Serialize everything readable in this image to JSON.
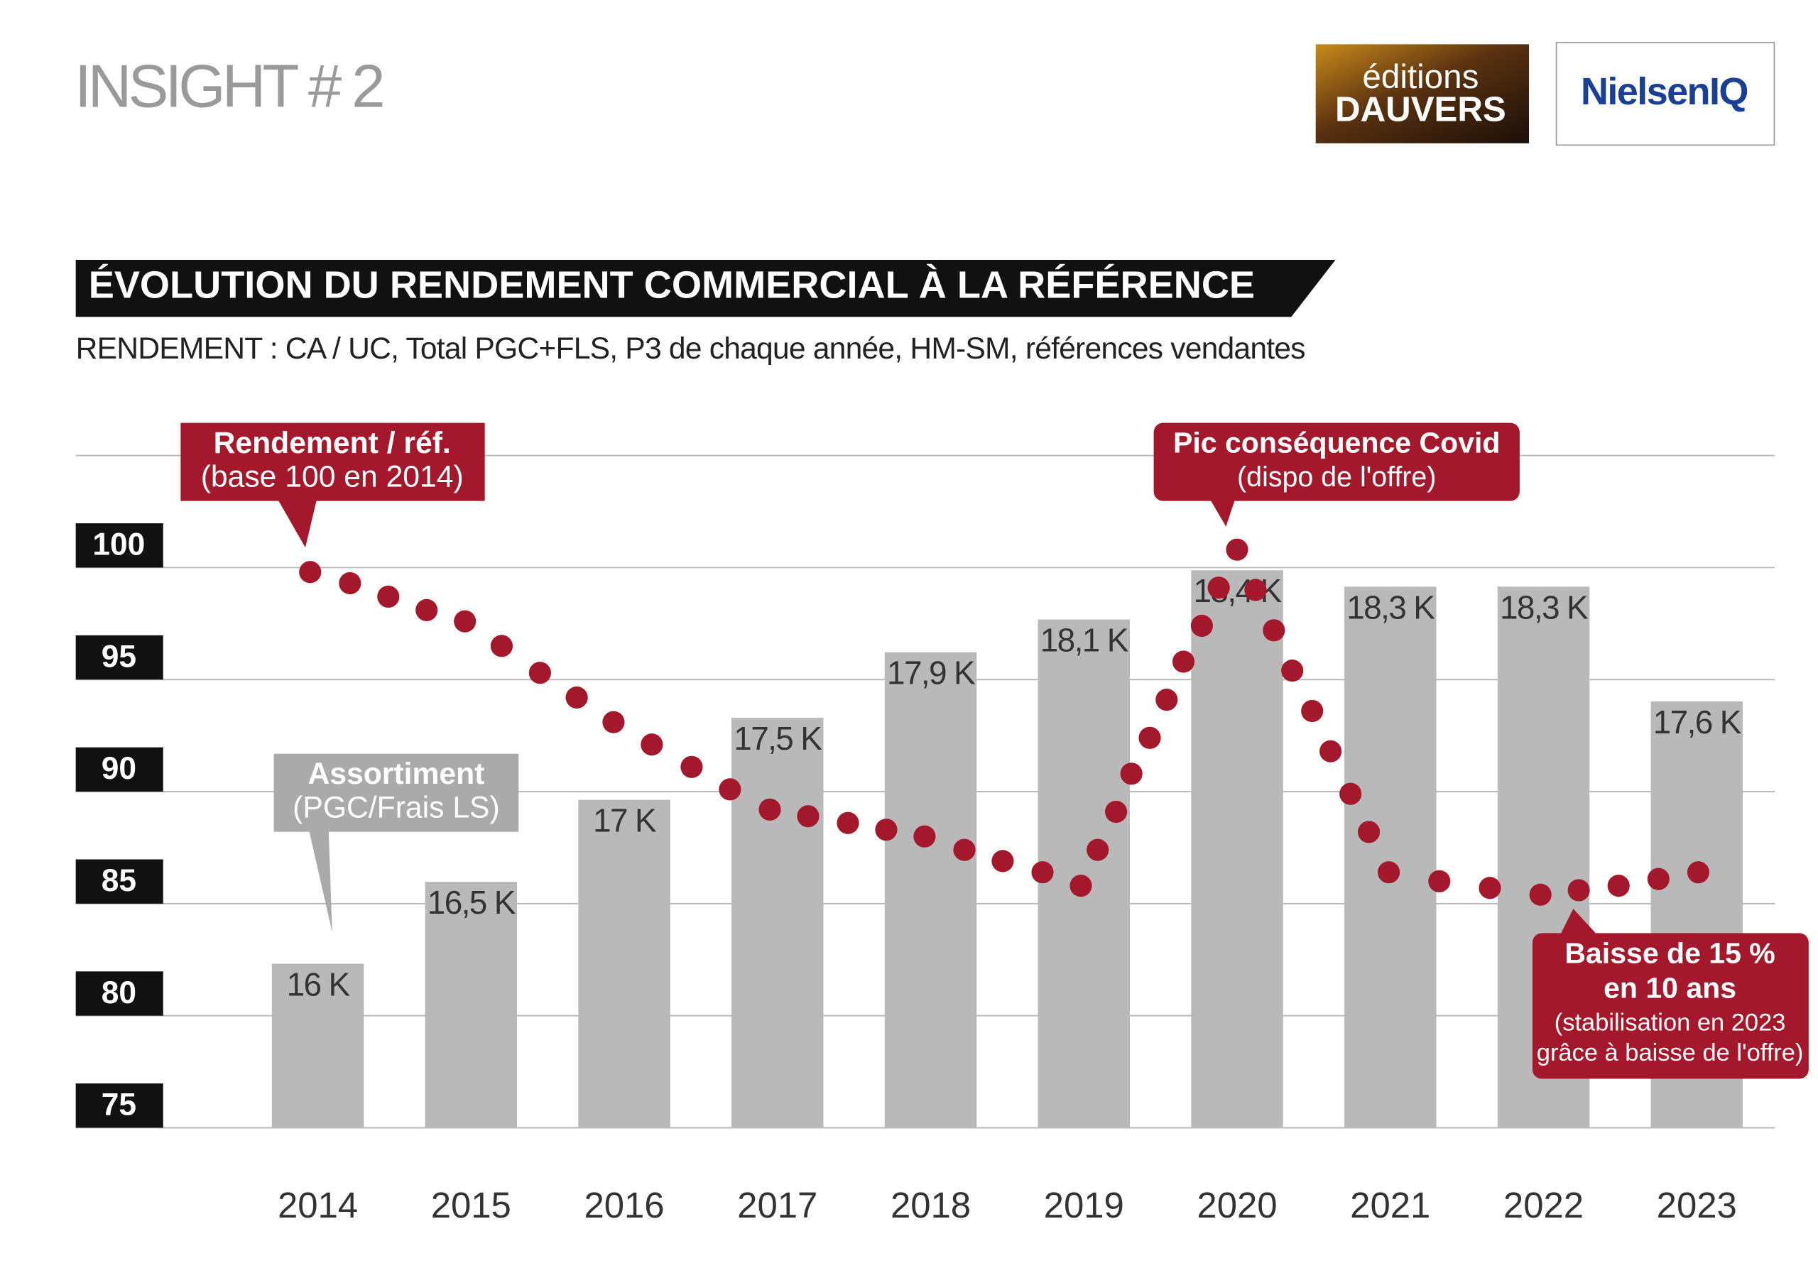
{
  "header": {
    "title": "INSIGHT # 2",
    "logo_left": [
      "éditions",
      "DAUVERS"
    ],
    "logo_right": "NielsenIQ"
  },
  "chart_data": {
    "type": "bar",
    "title": "ÉVOLUTION DU RENDEMENT COMMERCIAL À LA RÉFÉRENCE",
    "subtitle": "RENDEMENT : CA / UC, Total PGC+FLS, P3 de chaque année, HM-SM, références vendantes",
    "categories": [
      "2014",
      "2015",
      "2016",
      "2017",
      "2018",
      "2019",
      "2020",
      "2021",
      "2022",
      "2023"
    ],
    "xlim": [
      2012.42,
      2023.51
    ],
    "ylim": [
      75,
      105
    ],
    "yticks": [
      75,
      80,
      85,
      90,
      95,
      100
    ],
    "y2lim": [
      15,
      19.1
    ],
    "grid": true,
    "series": [
      {
        "name": "Assortiment",
        "subname": "(PGC/Frais LS)",
        "type": "bar",
        "axis": "y2",
        "color": "#b9b9b9",
        "values": [
          16,
          16.5,
          17,
          17.5,
          17.9,
          18.1,
          18.4,
          18.3,
          18.3,
          17.6
        ],
        "value_labels": [
          "16 K",
          "16,5 K",
          "17 K",
          "17,5 K",
          "17,9 K",
          "18,1 K",
          "18,4 K",
          "18,3 K",
          "18,3 K",
          "17,6 K"
        ]
      },
      {
        "name": "Rendement / réf.",
        "subname": "(base 100 en 2014)",
        "type": "scatter",
        "color": "#a3192b",
        "x": [
          2013.95,
          2014.21,
          2014.46,
          2014.71,
          2014.96,
          2015.2,
          2015.45,
          2015.69,
          2015.93,
          2016.18,
          2016.44,
          2016.69,
          2016.95,
          2017.2,
          2017.46,
          2017.71,
          2017.96,
          2018.22,
          2018.47,
          2018.73,
          2018.98,
          2019.09,
          2019.21,
          2019.31,
          2019.43,
          2019.54,
          2019.65,
          2019.77,
          2019.88,
          2020.0,
          2020.12,
          2020.24,
          2020.36,
          2020.49,
          2020.61,
          2020.74,
          2020.86,
          2020.99,
          2021.32,
          2021.65,
          2021.98,
          2022.23,
          2022.49,
          2022.75,
          2023.01
        ],
        "values": [
          99.8,
          99.3,
          98.7,
          98.1,
          97.6,
          96.5,
          95.3,
          94.2,
          93.1,
          92.1,
          91.1,
          90.1,
          89.2,
          88.9,
          88.6,
          88.3,
          88.0,
          87.4,
          86.9,
          86.4,
          85.8,
          87.4,
          89.1,
          90.8,
          92.4,
          94.1,
          95.8,
          97.4,
          99.1,
          100.8,
          99.0,
          97.2,
          95.4,
          93.6,
          91.8,
          89.9,
          88.2,
          86.4,
          86.0,
          85.7,
          85.4,
          85.6,
          85.8,
          86.1,
          86.4
        ]
      }
    ],
    "annotations": [
      {
        "lines": [
          "Pic conséquence Covid",
          "(dispo de l'offre)"
        ]
      },
      {
        "lines": [
          "Baisse de 15 %",
          "en 10 ans",
          "(stabilisation en 2023",
          "grâce à baisse de l'offre)"
        ]
      }
    ]
  }
}
